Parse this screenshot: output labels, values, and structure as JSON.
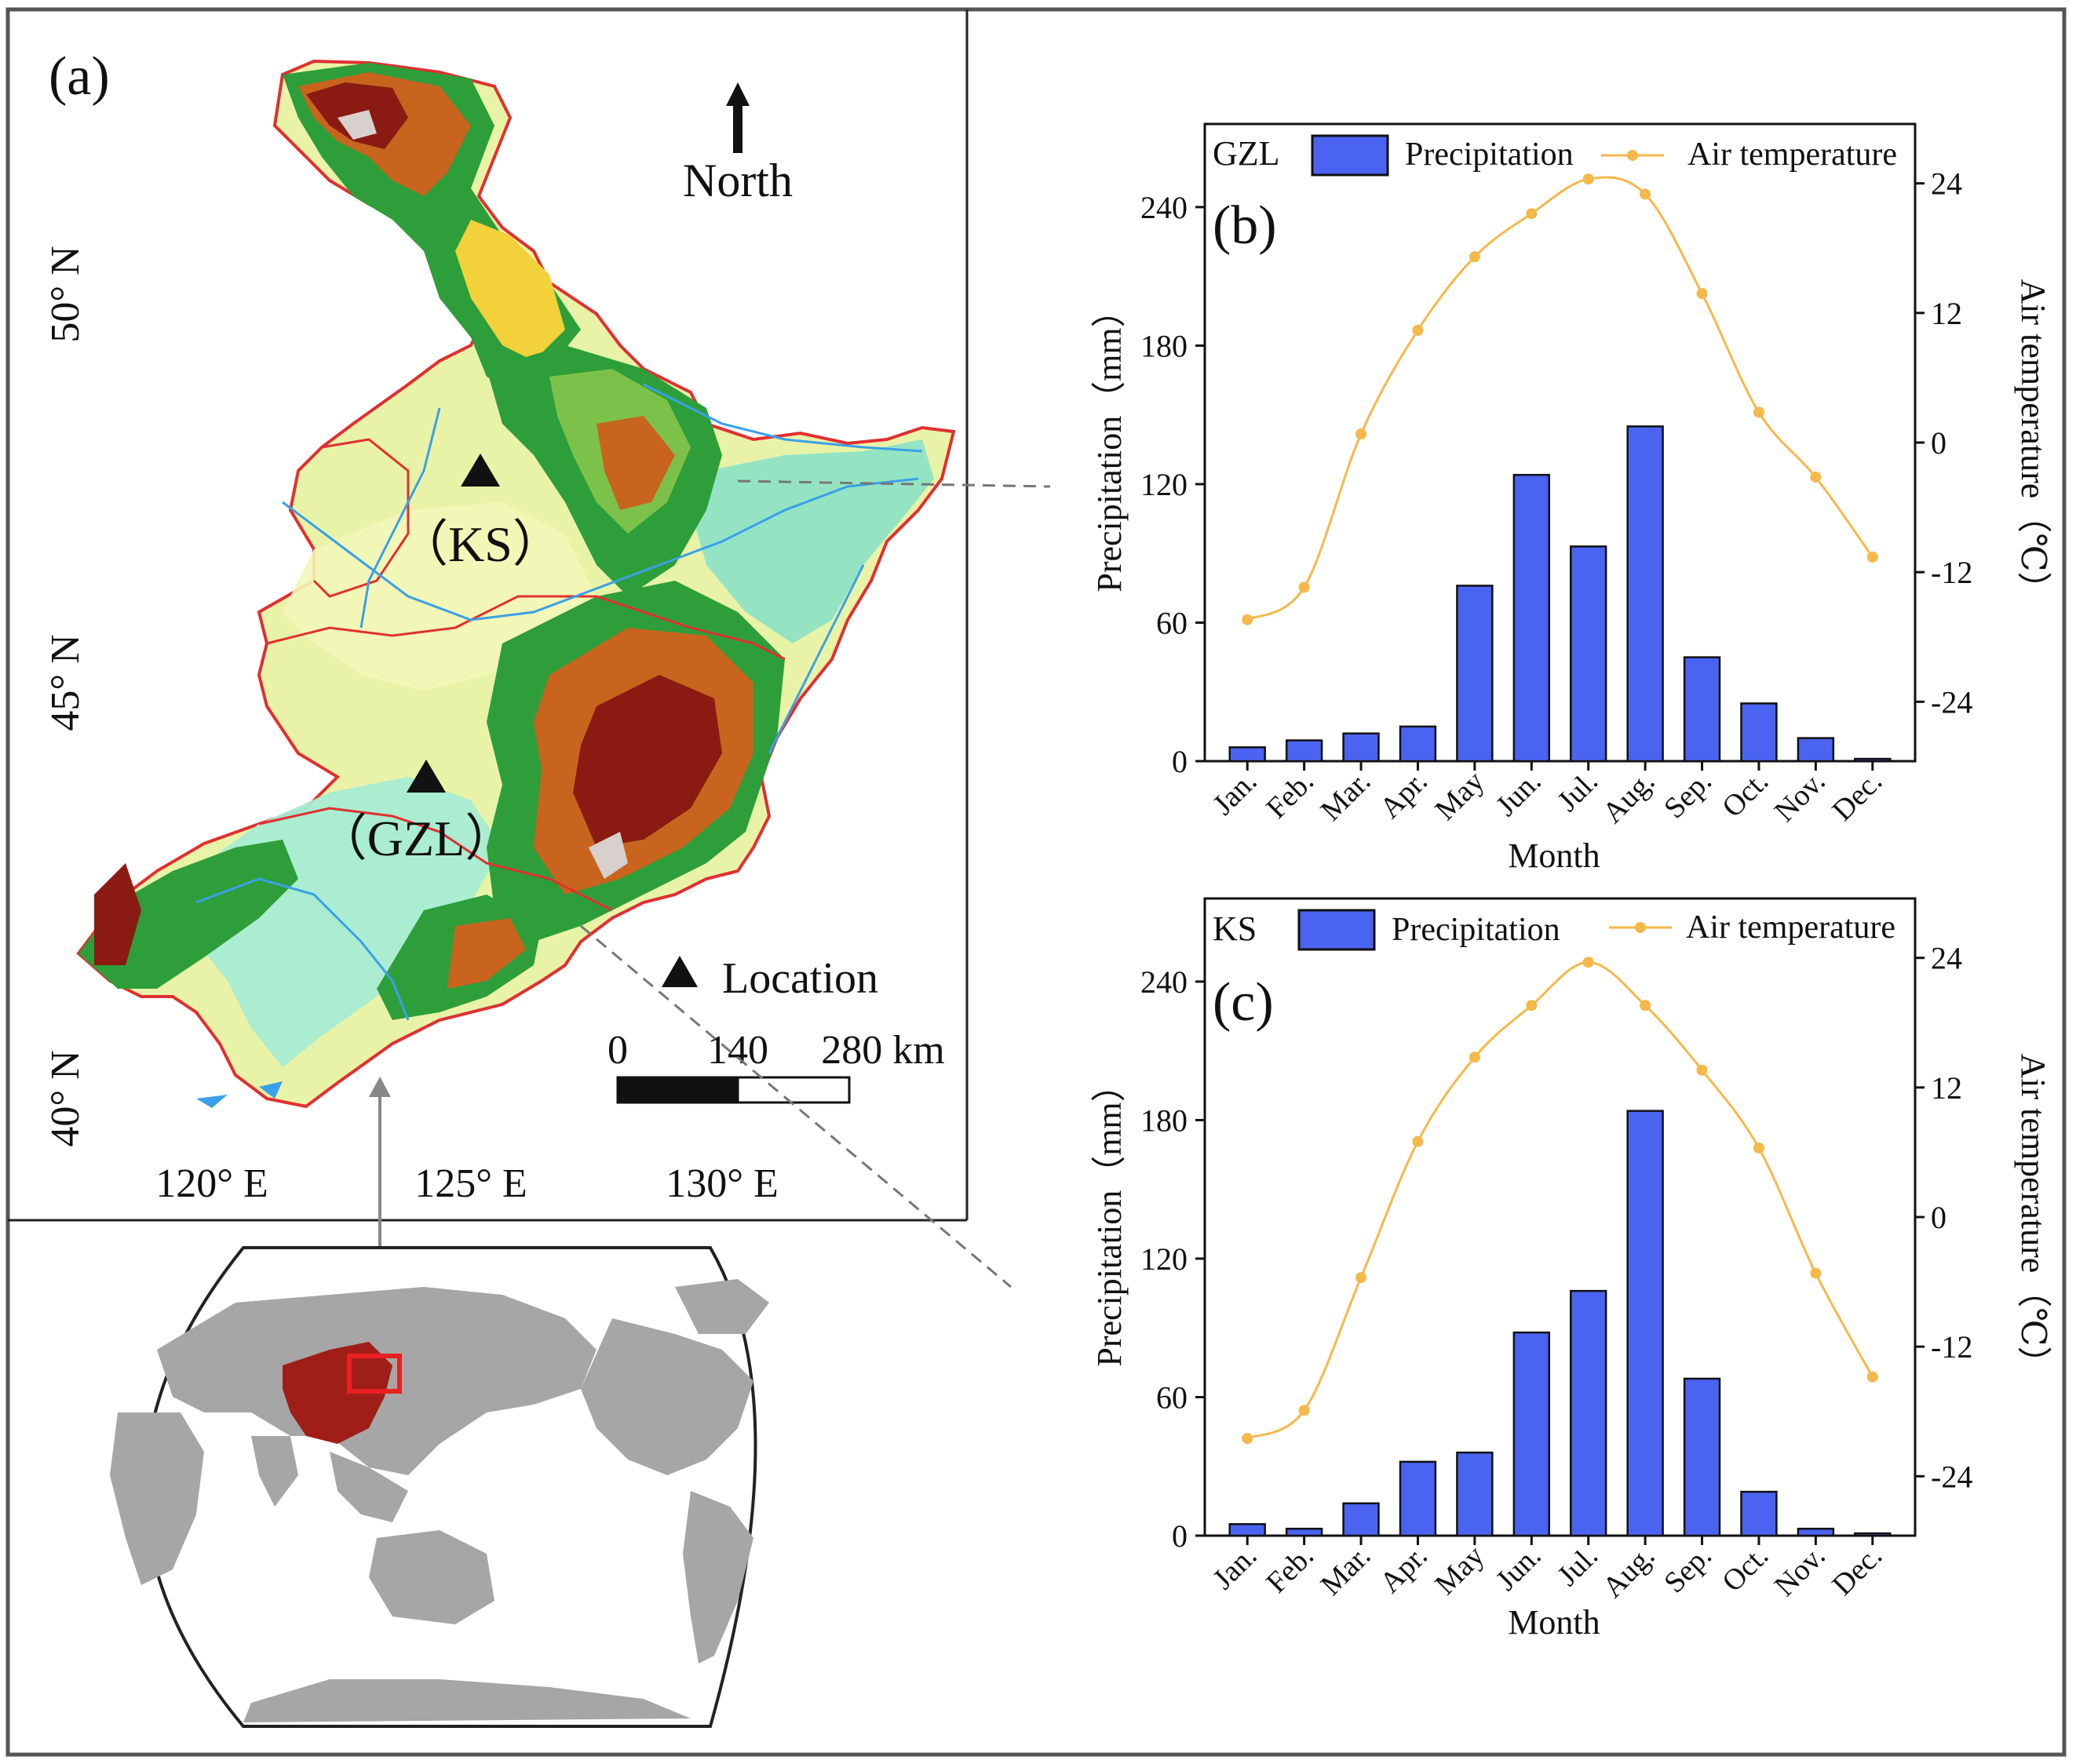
{
  "map_panel": {
    "label": "(a)",
    "north": "North",
    "lat_labels": [
      "50° N",
      "45° N",
      "40° N"
    ],
    "lon_labels": [
      "120° E",
      "125° E",
      "130° E"
    ],
    "sites": [
      {
        "code": "KS",
        "label": "（KS）"
      },
      {
        "code": "GZL",
        "label": "（GZL）"
      }
    ],
    "legend_location": "Location",
    "scale": {
      "ticks": [
        "0",
        "140",
        "280 km"
      ]
    }
  },
  "colors": {
    "bar": "#4a63f0",
    "bar_stroke": "#111111",
    "temp_line": "#f5b84a",
    "region_fill": "#e8f3a8",
    "lowland_fill": "#8fe3c4",
    "forest": "#2e9e3a",
    "mountain": "#c8641e",
    "peak": "#8b1a12",
    "china": "#a01e18",
    "land_gray": "#a6a6a6",
    "border_red": "#e03030"
  },
  "chart_data": [
    {
      "type": "bar",
      "panel": "(b)",
      "station": "GZL",
      "title": "",
      "legend": [
        "Precipitation",
        "Air temperature"
      ],
      "categories": [
        "Jan.",
        "Feb.",
        "Mar.",
        "Apr.",
        "May",
        "Jun.",
        "Jul.",
        "Aug.",
        "Sep.",
        "Oct.",
        "Nov.",
        "Dec."
      ],
      "series": [
        {
          "name": "Precipitation",
          "axis": "left",
          "kind": "bar",
          "values": [
            6,
            9,
            12,
            15,
            76,
            124,
            93,
            145,
            45,
            25,
            10,
            1
          ]
        },
        {
          "name": "Air temperature",
          "axis": "right",
          "kind": "line",
          "values": [
            -16.4,
            -13.4,
            0.8,
            10.4,
            17.2,
            21.2,
            24.4,
            23.0,
            13.8,
            2.8,
            -3.2,
            -10.6
          ]
        }
      ],
      "xlabel": "Month",
      "ylabel": "Precipitation（mm）",
      "y2label": "Air temperature（℃）",
      "ylim": [
        0,
        276
      ],
      "yticks": [
        0,
        60,
        120,
        180,
        240
      ],
      "y2lim": [
        -29.5,
        29.5
      ],
      "y2ticks": [
        -24,
        -12,
        0,
        12,
        24
      ]
    },
    {
      "type": "bar",
      "panel": "(c)",
      "station": "KS",
      "title": "",
      "legend": [
        "Precipitation",
        "Air temperature"
      ],
      "categories": [
        "Jan.",
        "Feb.",
        "Mar.",
        "Apr.",
        "May",
        "Jun.",
        "Jul.",
        "Aug.",
        "Sep.",
        "Oct.",
        "Nov.",
        "Dec."
      ],
      "series": [
        {
          "name": "Precipitation",
          "axis": "left",
          "kind": "bar",
          "values": [
            5,
            3,
            14,
            32,
            36,
            88,
            106,
            184,
            68,
            19,
            3,
            1
          ]
        },
        {
          "name": "Air temperature",
          "axis": "right",
          "kind": "line",
          "values": [
            -20.5,
            -17.9,
            -5.6,
            7.0,
            14.8,
            19.6,
            23.6,
            19.6,
            13.6,
            6.4,
            -5.2,
            -14.8
          ]
        }
      ],
      "xlabel": "Month",
      "ylabel": "Precipitation（mm）",
      "y2label": "Air temperature（℃）",
      "ylim": [
        0,
        276
      ],
      "yticks": [
        0,
        60,
        120,
        180,
        240
      ],
      "y2lim": [
        -29.5,
        29.5
      ],
      "y2ticks": [
        -24,
        -12,
        0,
        12,
        24
      ]
    }
  ]
}
